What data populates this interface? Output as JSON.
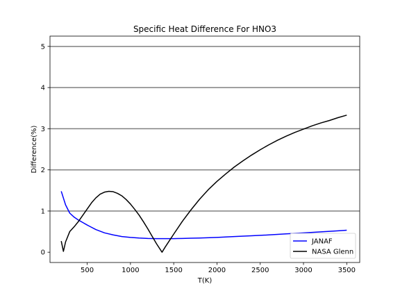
{
  "chart_data": {
    "type": "line",
    "title": "Specific Heat Difference For HNO3",
    "xlabel": "T(K)",
    "ylabel": "Difference(%)",
    "xlim": [
      70,
      3650
    ],
    "ylim": [
      -0.25,
      5.25
    ],
    "xticks": [
      500,
      1000,
      1500,
      2000,
      2500,
      3000,
      3500
    ],
    "yticks": [
      0,
      1,
      2,
      3,
      4,
      5
    ],
    "grid": {
      "axis": "y",
      "lines": [
        1,
        2,
        3,
        4,
        5
      ]
    },
    "legend_position": "lower-right",
    "series": [
      {
        "name": "JANAF",
        "color": "#0000ff",
        "points": [
          [
            200,
            1.48
          ],
          [
            250,
            1.15
          ],
          [
            298,
            0.95
          ],
          [
            350,
            0.85
          ],
          [
            400,
            0.78
          ],
          [
            450,
            0.72
          ],
          [
            500,
            0.66
          ],
          [
            600,
            0.55
          ],
          [
            700,
            0.47
          ],
          [
            800,
            0.42
          ],
          [
            900,
            0.38
          ],
          [
            1000,
            0.36
          ],
          [
            1100,
            0.345
          ],
          [
            1200,
            0.335
          ],
          [
            1300,
            0.33
          ],
          [
            1400,
            0.33
          ],
          [
            1500,
            0.33
          ],
          [
            1600,
            0.335
          ],
          [
            1700,
            0.34
          ],
          [
            1800,
            0.345
          ],
          [
            2000,
            0.36
          ],
          [
            2200,
            0.38
          ],
          [
            2400,
            0.4
          ],
          [
            2600,
            0.42
          ],
          [
            2800,
            0.445
          ],
          [
            3000,
            0.47
          ],
          [
            3200,
            0.495
          ],
          [
            3400,
            0.52
          ],
          [
            3500,
            0.535
          ]
        ]
      },
      {
        "name": "NASA Glenn",
        "color": "#000000",
        "points": [
          [
            200,
            0.27
          ],
          [
            225,
            0.02
          ],
          [
            250,
            0.25
          ],
          [
            298,
            0.5
          ],
          [
            350,
            0.62
          ],
          [
            400,
            0.75
          ],
          [
            450,
            0.9
          ],
          [
            500,
            1.05
          ],
          [
            550,
            1.2
          ],
          [
            600,
            1.32
          ],
          [
            650,
            1.41
          ],
          [
            700,
            1.46
          ],
          [
            750,
            1.48
          ],
          [
            800,
            1.47
          ],
          [
            850,
            1.43
          ],
          [
            900,
            1.37
          ],
          [
            950,
            1.28
          ],
          [
            1000,
            1.17
          ],
          [
            1050,
            1.04
          ],
          [
            1100,
            0.9
          ],
          [
            1150,
            0.74
          ],
          [
            1200,
            0.57
          ],
          [
            1250,
            0.39
          ],
          [
            1300,
            0.21
          ],
          [
            1365,
            0.0
          ],
          [
            1400,
            0.12
          ],
          [
            1450,
            0.28
          ],
          [
            1500,
            0.44
          ],
          [
            1600,
            0.75
          ],
          [
            1700,
            1.03
          ],
          [
            1800,
            1.29
          ],
          [
            1900,
            1.52
          ],
          [
            2000,
            1.72
          ],
          [
            2100,
            1.9
          ],
          [
            2200,
            2.07
          ],
          [
            2300,
            2.22
          ],
          [
            2400,
            2.36
          ],
          [
            2500,
            2.49
          ],
          [
            2600,
            2.61
          ],
          [
            2700,
            2.72
          ],
          [
            2800,
            2.82
          ],
          [
            2900,
            2.91
          ],
          [
            3000,
            2.99
          ],
          [
            3100,
            3.07
          ],
          [
            3200,
            3.14
          ],
          [
            3300,
            3.2
          ],
          [
            3400,
            3.27
          ],
          [
            3500,
            3.33
          ]
        ]
      }
    ]
  }
}
